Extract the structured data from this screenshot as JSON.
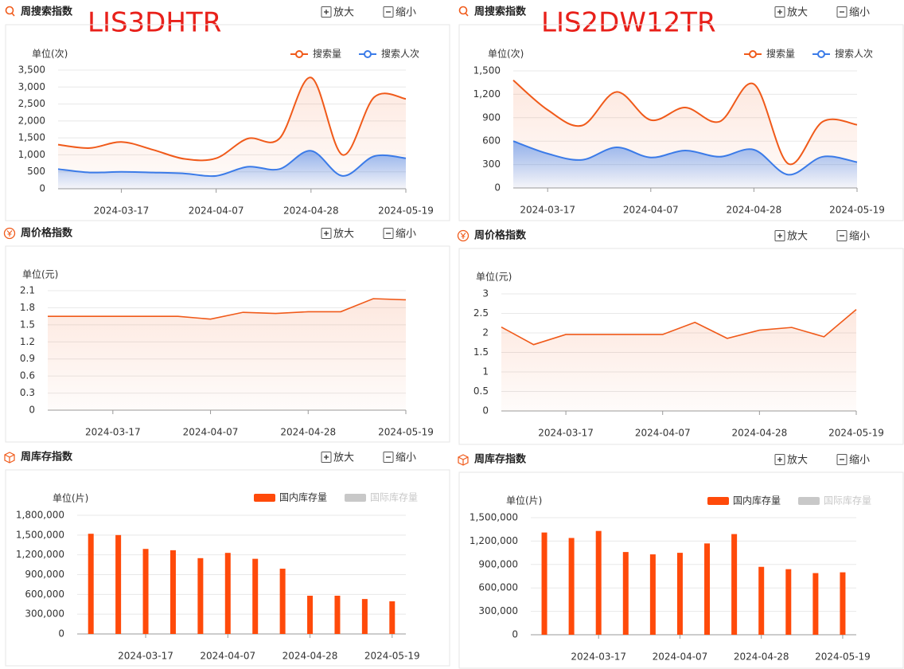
{
  "columns": [
    "LIS3DHTR",
    "LIS2DW12TR"
  ],
  "controls": {
    "zoom_in": "放大",
    "zoom_out": "缩小"
  },
  "chart_data": [
    {
      "type": "line",
      "smooth": true,
      "title": "周搜索指数",
      "y_label": "单位(次)",
      "categories": [
        null,
        null,
        "2024-03-17",
        null,
        null,
        "2024-04-07",
        null,
        null,
        "2024-04-28",
        null,
        null,
        "2024-05-19"
      ],
      "series": [
        {
          "name": "搜索量",
          "color": "#f05a1a",
          "values": [
            1300,
            1200,
            1380,
            1150,
            880,
            900,
            1480,
            1480,
            3280,
            1000,
            2700,
            2650
          ]
        },
        {
          "name": "搜索人次",
          "color": "#3b7be8",
          "values": [
            580,
            480,
            500,
            480,
            450,
            380,
            650,
            580,
            1120,
            380,
            960,
            900
          ]
        }
      ],
      "ylim": [
        0,
        3500
      ],
      "yticks": [
        0,
        500,
        {
          "value": 1000,
          "label": "1,000"
        },
        {
          "value": 1500,
          "label": "1,500"
        },
        {
          "value": 2000,
          "label": "2,000"
        },
        {
          "value": 2500,
          "label": "2,500"
        },
        {
          "value": 3000,
          "label": "3,000"
        },
        {
          "value": 3500,
          "label": "3,500"
        }
      ],
      "grid": true,
      "legend": "top-right"
    },
    {
      "type": "line",
      "smooth": true,
      "title": "周搜索指数",
      "y_label": "单位(次)",
      "categories": [
        null,
        "2024-03-17",
        null,
        null,
        "2024-04-07",
        null,
        null,
        "2024-04-28",
        null,
        null,
        "2024-05-19"
      ],
      "series": [
        {
          "name": "搜索量",
          "color": "#f05a1a",
          "values": [
            1380,
            1000,
            800,
            1230,
            870,
            1030,
            850,
            1330,
            310,
            850,
            810
          ]
        },
        {
          "name": "搜索人次",
          "color": "#3b7be8",
          "values": [
            600,
            440,
            360,
            520,
            390,
            480,
            400,
            490,
            170,
            400,
            330
          ]
        }
      ],
      "ylim": [
        0,
        1500
      ],
      "yticks": [
        0,
        300,
        600,
        900,
        {
          "value": 1200,
          "label": "1,200"
        },
        {
          "value": 1500,
          "label": "1,500"
        }
      ],
      "grid": true,
      "legend": "top-right"
    },
    {
      "type": "line",
      "smooth": false,
      "title": "周价格指数",
      "y_label": "单位(元)",
      "categories": [
        null,
        null,
        "2024-03-17",
        null,
        null,
        "2024-04-07",
        null,
        null,
        "2024-04-28",
        null,
        null,
        "2024-05-19"
      ],
      "color": "#f05a1a",
      "values": [
        1.65,
        1.65,
        1.65,
        1.65,
        1.65,
        1.6,
        1.72,
        1.7,
        1.73,
        1.73,
        1.96,
        1.94
      ],
      "ylim": [
        0,
        2.1
      ],
      "yticks": [
        0,
        0.3,
        0.6,
        0.9,
        1.2,
        1.5,
        1.8,
        2.1
      ],
      "grid": true
    },
    {
      "type": "line",
      "smooth": false,
      "title": "周价格指数",
      "y_label": "单位(元)",
      "categories": [
        null,
        null,
        "2024-03-17",
        null,
        null,
        "2024-04-07",
        null,
        null,
        "2024-04-28",
        null,
        null,
        "2024-05-19"
      ],
      "color": "#f05a1a",
      "values": [
        2.15,
        1.7,
        1.96,
        1.96,
        1.96,
        1.96,
        2.27,
        1.86,
        2.07,
        2.14,
        1.9,
        2.6
      ],
      "ylim": [
        0,
        3
      ],
      "yticks": [
        0,
        0.5,
        1,
        1.5,
        2,
        2.5,
        3
      ],
      "grid": true
    },
    {
      "type": "bar",
      "title": "周库存指数",
      "y_label": "单位(片)",
      "categories": [
        null,
        null,
        "2024-03-17",
        null,
        null,
        "2024-04-07",
        null,
        null,
        "2024-04-28",
        null,
        null,
        "2024-05-19"
      ],
      "series": [
        {
          "name": "国内库存量",
          "color": "#ff4a0a",
          "values": [
            1520000,
            1500000,
            1290000,
            1270000,
            1150000,
            1230000,
            1140000,
            990000,
            580000,
            580000,
            530000,
            495000
          ]
        },
        {
          "name": "国际库存量",
          "color": "#cccccc",
          "hidden": true,
          "values": [
            null,
            null,
            null,
            null,
            null,
            null,
            null,
            null,
            null,
            null,
            null,
            null
          ]
        }
      ],
      "ylim": [
        0,
        1800000
      ],
      "yticks": [
        0,
        {
          "value": 300000,
          "label": "300,000"
        },
        {
          "value": 600000,
          "label": "600,000"
        },
        {
          "value": 900000,
          "label": "900,000"
        },
        {
          "value": 1200000,
          "label": "1,200,000"
        },
        {
          "value": 1500000,
          "label": "1,500,000"
        },
        {
          "value": 1800000,
          "label": "1,800,000"
        }
      ],
      "grid": true,
      "legend": "top-right"
    },
    {
      "type": "bar",
      "title": "周库存指数",
      "y_label": "单位(片)",
      "categories": [
        null,
        null,
        "2024-03-17",
        null,
        null,
        "2024-04-07",
        null,
        null,
        "2024-04-28",
        null,
        null,
        "2024-05-19"
      ],
      "series": [
        {
          "name": "国内库存量",
          "color": "#ff4a0a",
          "values": [
            1310000,
            1240000,
            1330000,
            1060000,
            1030000,
            1050000,
            1170000,
            1290000,
            870000,
            840000,
            790000,
            800000
          ]
        },
        {
          "name": "国际库存量",
          "color": "#cccccc",
          "hidden": true,
          "values": [
            null,
            null,
            null,
            null,
            null,
            null,
            null,
            null,
            null,
            null,
            null,
            null
          ]
        }
      ],
      "ylim": [
        0,
        1500000
      ],
      "yticks": [
        0,
        {
          "value": 300000,
          "label": "300,000"
        },
        {
          "value": 600000,
          "label": "600,000"
        },
        {
          "value": 900000,
          "label": "900,000"
        },
        {
          "value": 1200000,
          "label": "1,200,000"
        },
        {
          "value": 1500000,
          "label": "1,500,000"
        }
      ],
      "grid": true,
      "legend": "top-right"
    }
  ]
}
